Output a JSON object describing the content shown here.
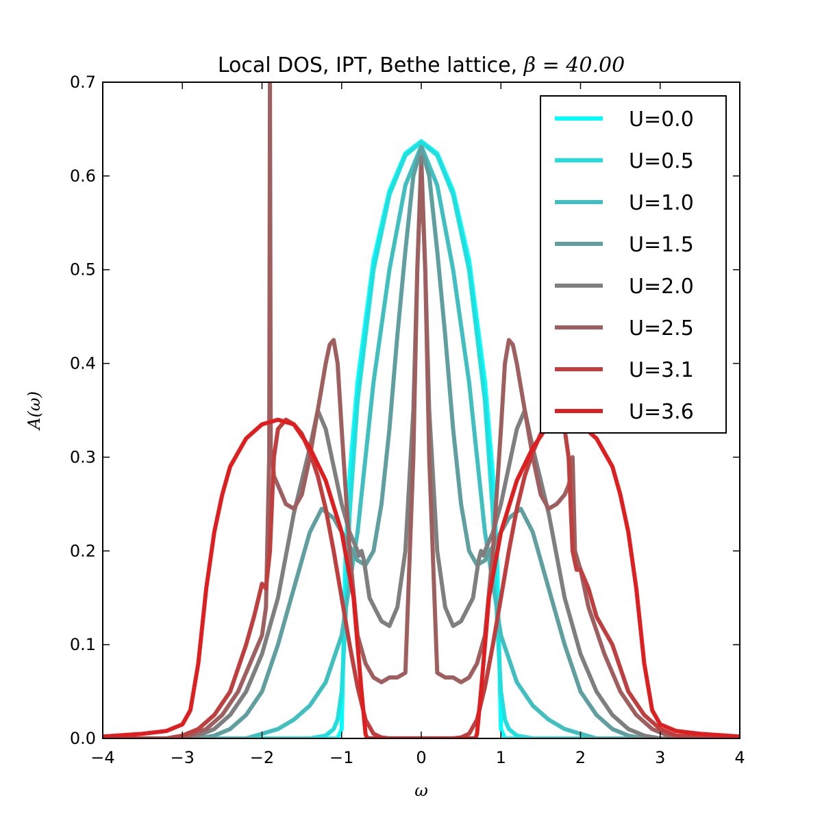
{
  "chart_data": {
    "type": "line",
    "title": "Local DOS, IPT, Bethe lattice, ",
    "title_math": "β = 40.00",
    "xlabel": "ω",
    "ylabel": "A(ω)",
    "xlim": [
      -4,
      4
    ],
    "ylim": [
      0,
      0.7
    ],
    "xticks": [
      "−4",
      "−3",
      "−2",
      "−1",
      "0",
      "1",
      "2",
      "3",
      "4"
    ],
    "yticks": [
      "0.0",
      "0.1",
      "0.2",
      "0.3",
      "0.4",
      "0.5",
      "0.6",
      "0.7"
    ],
    "grid": false,
    "legend_position": "top-right",
    "series": [
      {
        "name": "U=0.0",
        "color": "#00ffff",
        "x": [
          -4,
          -1.05,
          -1.0,
          -0.95,
          -0.9,
          -0.8,
          -0.6,
          -0.4,
          -0.2,
          0,
          0.2,
          0.4,
          0.6,
          0.8,
          0.9,
          0.95,
          1.0,
          1.05,
          4
        ],
        "y": [
          0,
          0,
          0.01,
          0.2,
          0.28,
          0.38,
          0.51,
          0.584,
          0.624,
          0.637,
          0.624,
          0.584,
          0.51,
          0.38,
          0.28,
          0.2,
          0.01,
          0,
          0
        ]
      },
      {
        "name": "U=0.5",
        "color": "#1fdfdf",
        "x": [
          -4,
          -1.4,
          -1.2,
          -1.1,
          -1.05,
          -1.0,
          -0.95,
          -0.9,
          -0.8,
          -0.6,
          -0.4,
          -0.2,
          0,
          0.2,
          0.4,
          0.6,
          0.8,
          0.9,
          0.95,
          1.0,
          1.05,
          1.1,
          1.2,
          1.4,
          4
        ],
        "y": [
          0,
          0,
          0.003,
          0.01,
          0.02,
          0.05,
          0.13,
          0.24,
          0.36,
          0.5,
          0.58,
          0.622,
          0.636,
          0.622,
          0.58,
          0.5,
          0.36,
          0.24,
          0.13,
          0.05,
          0.02,
          0.01,
          0.003,
          0,
          0
        ]
      },
      {
        "name": "U=1.0",
        "color": "#3fbfbf",
        "x": [
          -4,
          -2.2,
          -2.0,
          -1.8,
          -1.6,
          -1.4,
          -1.2,
          -1.0,
          -0.8,
          -0.6,
          -0.4,
          -0.2,
          0,
          0.2,
          0.4,
          0.6,
          0.8,
          1.0,
          1.2,
          1.4,
          1.6,
          1.8,
          2.0,
          2.2,
          4
        ],
        "y": [
          0,
          0,
          0.005,
          0.01,
          0.02,
          0.035,
          0.06,
          0.11,
          0.22,
          0.38,
          0.5,
          0.59,
          0.632,
          0.59,
          0.5,
          0.38,
          0.22,
          0.11,
          0.06,
          0.035,
          0.02,
          0.01,
          0.005,
          0,
          0
        ]
      },
      {
        "name": "U=1.5",
        "color": "#5f9f9f",
        "x": [
          -4,
          -2.8,
          -2.6,
          -2.4,
          -2.2,
          -2.0,
          -1.8,
          -1.6,
          -1.4,
          -1.25,
          -1.1,
          -1.0,
          -0.9,
          -0.8,
          -0.7,
          -0.6,
          -0.5,
          -0.4,
          -0.3,
          -0.2,
          -0.1,
          0,
          0.1,
          0.2,
          0.3,
          0.4,
          0.5,
          0.6,
          0.7,
          0.8,
          0.9,
          1.0,
          1.1,
          1.25,
          1.4,
          1.6,
          1.8,
          2.0,
          2.2,
          2.4,
          2.6,
          2.8,
          4
        ],
        "y": [
          0,
          0,
          0.003,
          0.01,
          0.025,
          0.05,
          0.1,
          0.16,
          0.22,
          0.245,
          0.235,
          0.22,
          0.205,
          0.19,
          0.185,
          0.2,
          0.25,
          0.33,
          0.43,
          0.52,
          0.6,
          0.63,
          0.6,
          0.52,
          0.43,
          0.33,
          0.25,
          0.2,
          0.185,
          0.19,
          0.205,
          0.22,
          0.235,
          0.245,
          0.22,
          0.16,
          0.1,
          0.05,
          0.025,
          0.01,
          0.003,
          0,
          0
        ]
      },
      {
        "name": "U=2.0",
        "color": "#7f7f7f",
        "x": [
          -4,
          -3.0,
          -2.8,
          -2.6,
          -2.4,
          -2.2,
          -2.0,
          -1.8,
          -1.6,
          -1.4,
          -1.3,
          -1.2,
          -1.1,
          -1.0,
          -0.9,
          -0.8,
          -0.78,
          -0.75,
          -0.72,
          -0.65,
          -0.5,
          -0.4,
          -0.3,
          -0.2,
          -0.1,
          -0.05,
          0,
          0.05,
          0.1,
          0.2,
          0.3,
          0.4,
          0.5,
          0.65,
          0.72,
          0.75,
          0.78,
          0.8,
          0.9,
          1.0,
          1.1,
          1.2,
          1.3,
          1.4,
          1.6,
          1.8,
          2.0,
          2.2,
          2.4,
          2.6,
          2.8,
          3.0,
          4
        ],
        "y": [
          0,
          0,
          0.003,
          0.01,
          0.025,
          0.05,
          0.09,
          0.15,
          0.24,
          0.31,
          0.35,
          0.33,
          0.29,
          0.25,
          0.22,
          0.2,
          0.195,
          0.2,
          0.19,
          0.15,
          0.125,
          0.12,
          0.14,
          0.2,
          0.35,
          0.5,
          0.62,
          0.5,
          0.35,
          0.2,
          0.14,
          0.12,
          0.125,
          0.15,
          0.19,
          0.2,
          0.195,
          0.2,
          0.22,
          0.25,
          0.29,
          0.33,
          0.35,
          0.31,
          0.24,
          0.15,
          0.09,
          0.05,
          0.025,
          0.01,
          0.003,
          0,
          0
        ]
      },
      {
        "name": "U=2.5",
        "color": "#9f5f5f",
        "x": [
          -4,
          -3.1,
          -2.9,
          -2.7,
          -2.5,
          -2.3,
          -2.1,
          -2.0,
          -1.95,
          -1.91,
          -1.9,
          -1.89,
          -1.87,
          -1.85,
          -1.8,
          -1.75,
          -1.7,
          -1.6,
          -1.5,
          -1.4,
          -1.3,
          -1.2,
          -1.15,
          -1.1,
          -1.05,
          -1.0,
          -0.9,
          -0.8,
          -0.7,
          -0.6,
          -0.5,
          -0.4,
          -0.3,
          -0.2,
          -0.1,
          -0.05,
          0,
          0.05,
          0.1,
          0.2,
          0.3,
          0.4,
          0.5,
          0.6,
          0.7,
          0.8,
          0.9,
          1.0,
          1.05,
          1.1,
          1.15,
          1.2,
          1.3,
          1.4,
          1.5,
          1.6,
          1.7,
          1.8,
          1.85,
          1.88,
          1.9,
          1.93,
          2.0,
          2.1,
          2.3,
          2.5,
          2.7,
          2.9,
          3.1,
          4
        ],
        "y": [
          0,
          0,
          0.003,
          0.01,
          0.025,
          0.05,
          0.09,
          0.11,
          0.14,
          0.3,
          0.7,
          0.3,
          0.3,
          0.28,
          0.27,
          0.26,
          0.25,
          0.245,
          0.26,
          0.3,
          0.35,
          0.4,
          0.42,
          0.425,
          0.4,
          0.33,
          0.2,
          0.11,
          0.08,
          0.065,
          0.06,
          0.065,
          0.065,
          0.07,
          0.3,
          0.5,
          0.61,
          0.5,
          0.3,
          0.07,
          0.065,
          0.065,
          0.06,
          0.065,
          0.08,
          0.11,
          0.2,
          0.33,
          0.4,
          0.425,
          0.42,
          0.4,
          0.35,
          0.3,
          0.26,
          0.245,
          0.25,
          0.26,
          0.27,
          0.28,
          0.3,
          0.2,
          0.18,
          0.14,
          0.09,
          0.05,
          0.025,
          0.01,
          0.003,
          0
        ]
      },
      {
        "name": "U=3.1",
        "color": "#bf3f3f",
        "x": [
          -4,
          -3.2,
          -3.0,
          -2.8,
          -2.6,
          -2.4,
          -2.2,
          -2.1,
          -2.0,
          -1.95,
          -1.9,
          -1.85,
          -1.8,
          -1.7,
          -1.6,
          -1.5,
          -1.4,
          -1.3,
          -1.2,
          -1.1,
          -1.0,
          -0.9,
          -0.8,
          -0.7,
          -0.6,
          -0.5,
          -0.4,
          -0.3,
          0.3,
          0.4,
          0.5,
          0.6,
          0.7,
          0.8,
          0.9,
          1.0,
          1.1,
          1.2,
          1.3,
          1.4,
          1.5,
          1.6,
          1.7,
          1.8,
          1.85,
          1.9,
          1.95,
          2.0,
          2.1,
          2.2,
          2.4,
          2.6,
          2.8,
          3.0,
          3.2,
          4
        ],
        "y": [
          0,
          0,
          0.003,
          0.01,
          0.025,
          0.05,
          0.1,
          0.13,
          0.165,
          0.16,
          0.2,
          0.3,
          0.33,
          0.34,
          0.335,
          0.325,
          0.305,
          0.28,
          0.245,
          0.2,
          0.15,
          0.1,
          0.055,
          0.02,
          0.005,
          0.001,
          0,
          0,
          0,
          0,
          0.001,
          0.005,
          0.02,
          0.055,
          0.1,
          0.15,
          0.2,
          0.245,
          0.28,
          0.305,
          0.325,
          0.335,
          0.34,
          0.33,
          0.3,
          0.2,
          0.18,
          0.18,
          0.16,
          0.13,
          0.1,
          0.05,
          0.025,
          0.01,
          0.003,
          0
        ]
      },
      {
        "name": "U=3.6",
        "color": "#df1f1f",
        "x": [
          -4,
          -3.5,
          -3.2,
          -3.0,
          -2.9,
          -2.8,
          -2.7,
          -2.6,
          -2.5,
          -2.4,
          -2.3,
          -2.2,
          -2.0,
          -1.8,
          -1.6,
          -1.4,
          -1.2,
          -1.0,
          -0.85,
          -0.75,
          -0.7,
          -0.68,
          0.68,
          0.7,
          0.75,
          0.85,
          1.0,
          1.2,
          1.4,
          1.6,
          1.8,
          2.0,
          2.2,
          2.3,
          2.4,
          2.5,
          2.6,
          2.7,
          2.8,
          2.9,
          3.0,
          3.2,
          3.5,
          4
        ],
        "y": [
          0.002,
          0.005,
          0.008,
          0.015,
          0.03,
          0.08,
          0.16,
          0.22,
          0.26,
          0.29,
          0.305,
          0.32,
          0.335,
          0.34,
          0.335,
          0.31,
          0.275,
          0.22,
          0.15,
          0.05,
          0.005,
          0,
          0,
          0.005,
          0.05,
          0.15,
          0.22,
          0.275,
          0.31,
          0.335,
          0.34,
          0.335,
          0.32,
          0.305,
          0.29,
          0.26,
          0.22,
          0.16,
          0.08,
          0.03,
          0.015,
          0.008,
          0.005,
          0.002
        ]
      }
    ]
  }
}
